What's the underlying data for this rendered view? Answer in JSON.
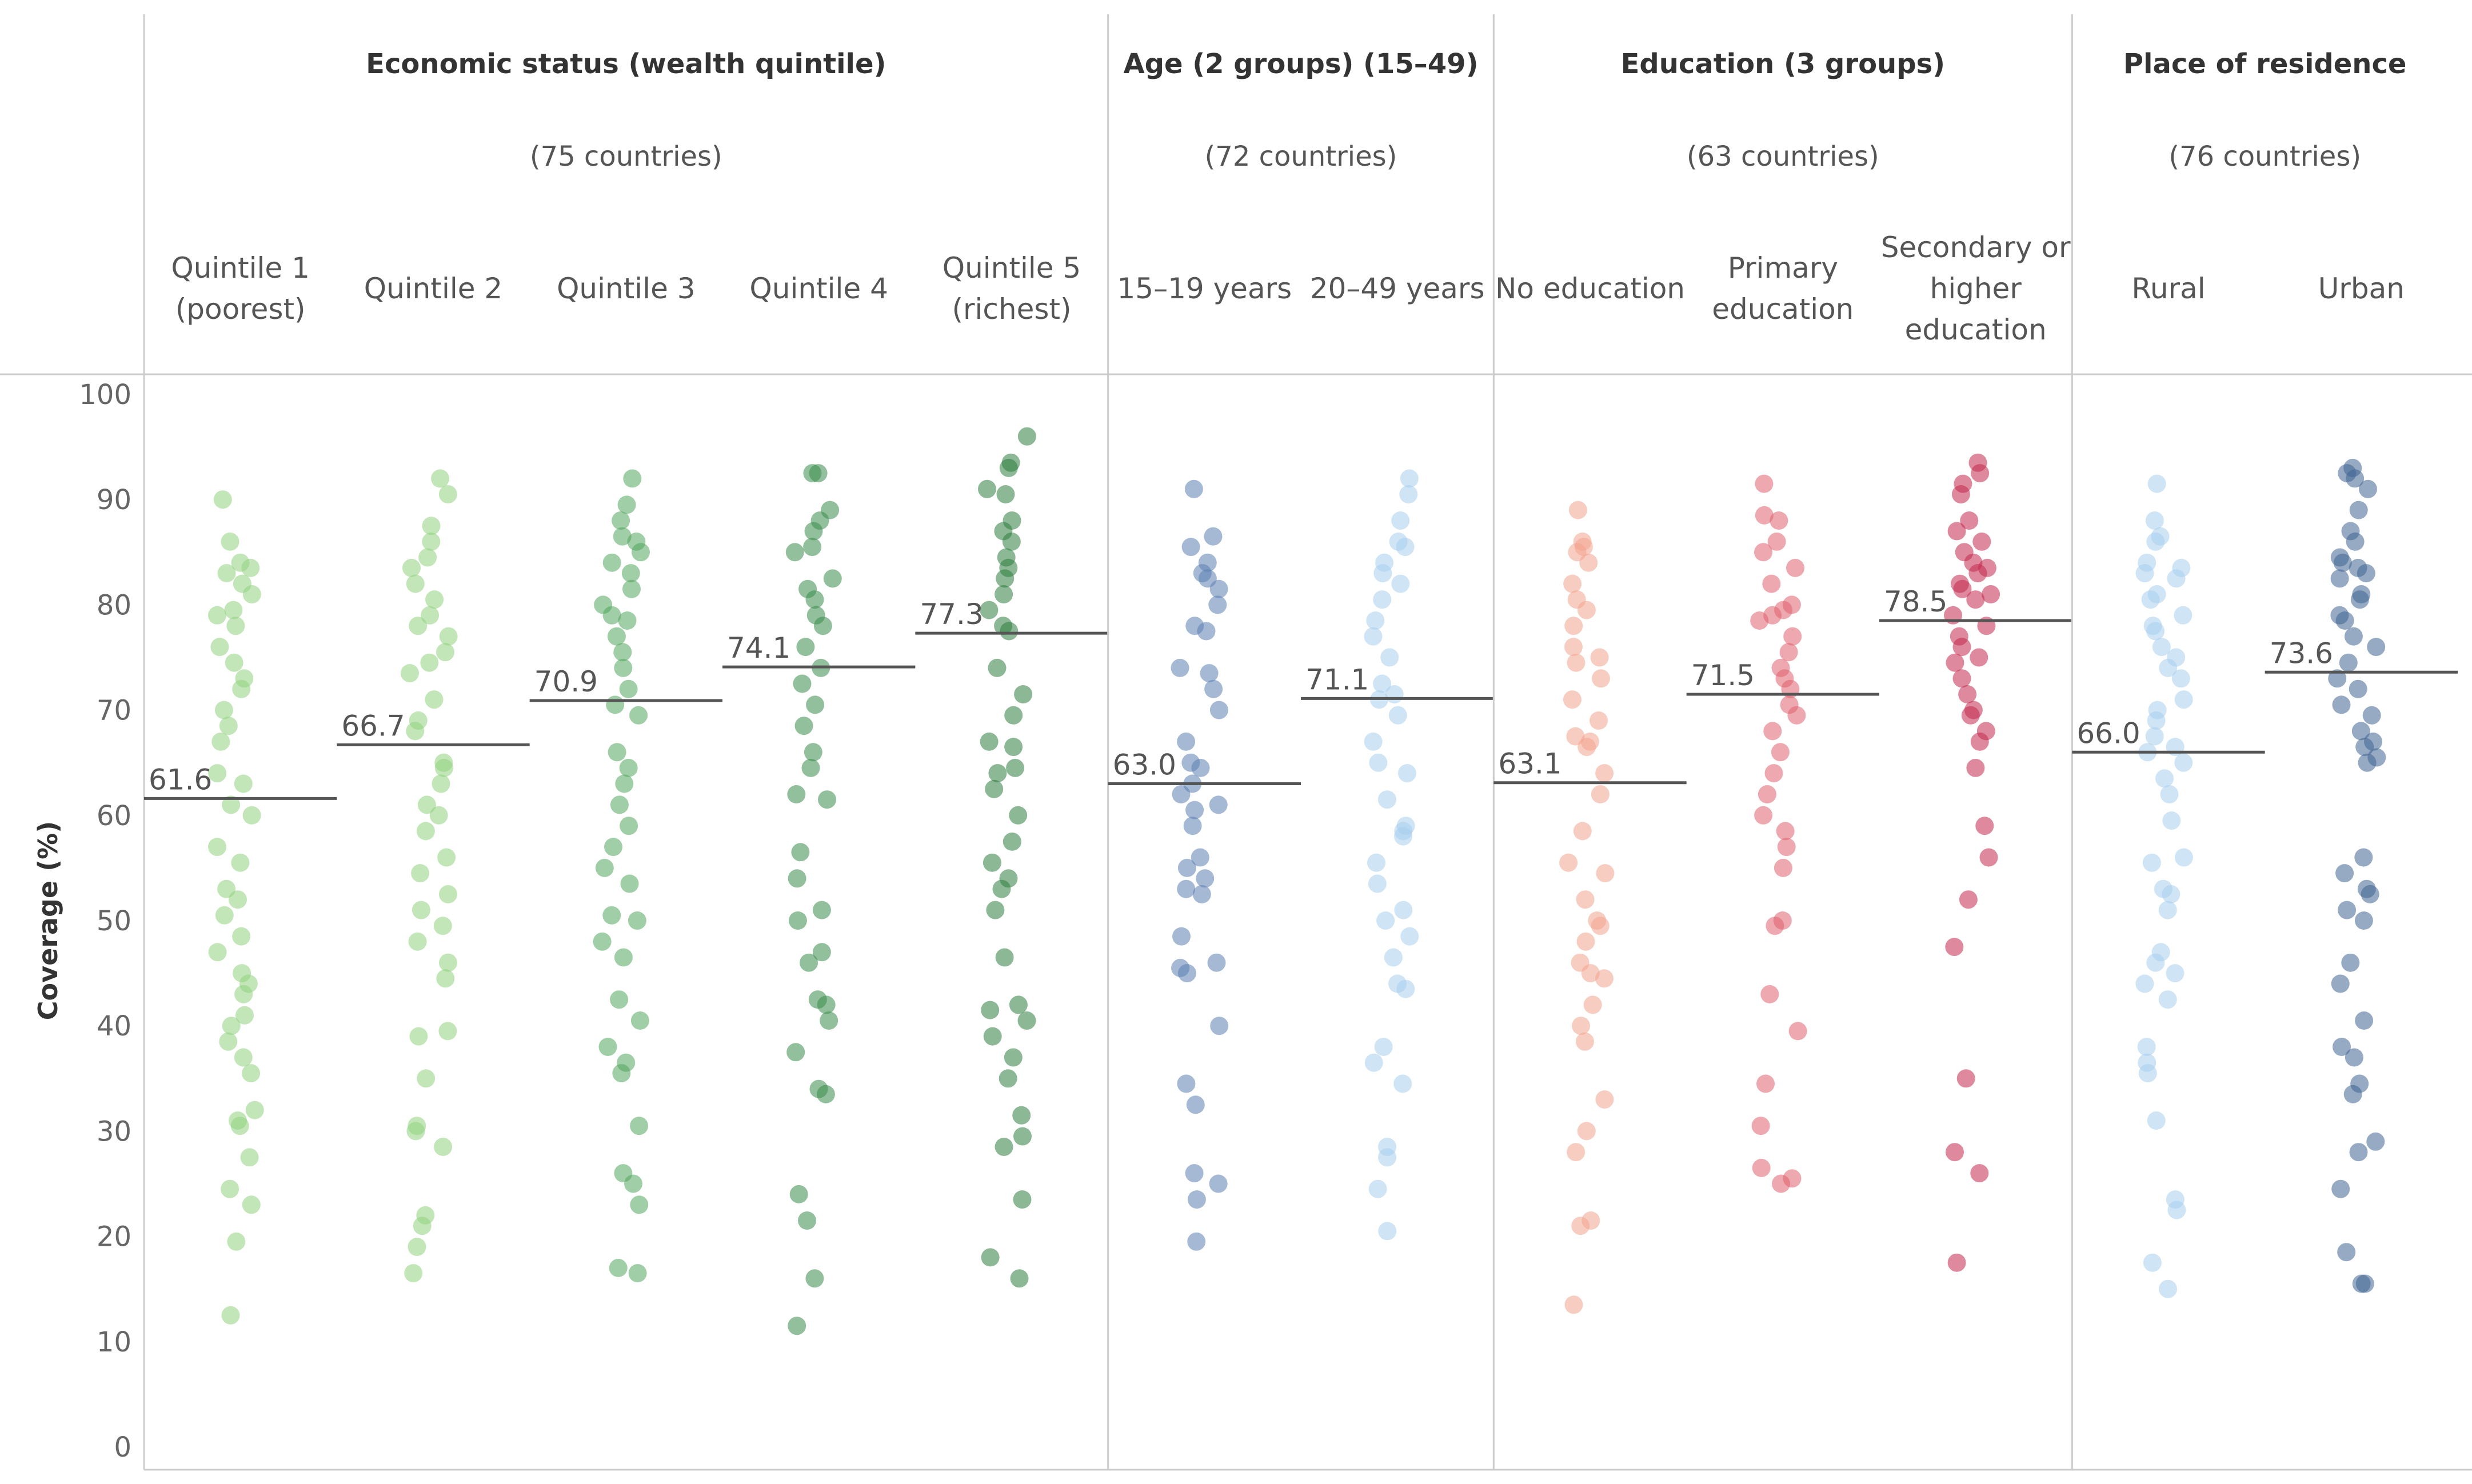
{
  "chart_data": {
    "type": "scatter",
    "ylabel": "Coverage (%)",
    "ylim": [
      0,
      100
    ],
    "yticks": [
      0,
      10,
      20,
      30,
      40,
      50,
      60,
      70,
      80,
      90,
      100
    ],
    "groups": [
      {
        "title": "Economic status (wealth quintile)",
        "subtitle": "(75 countries)",
        "categories": [
          {
            "label": [
              "Quintile 1",
              "(poorest)"
            ],
            "median": 61.6,
            "color": "#8fd17e",
            "values": [
              90,
              86,
              84,
              83.5,
              83,
              82,
              81,
              79.5,
              79,
              78,
              76,
              74.5,
              73,
              72,
              70,
              68.5,
              67,
              64,
              63,
              61,
              60,
              57,
              55.5,
              53,
              52,
              50.5,
              48.5,
              47,
              45,
              44,
              43,
              41,
              40,
              38.5,
              37,
              35.5,
              32,
              31,
              30.5,
              27.5,
              24.5,
              23,
              19.5,
              12.5
            ]
          },
          {
            "label": [
              "Quintile 2"
            ],
            "median": 66.7,
            "color": "#8fd17e",
            "values": [
              92,
              90.5,
              87.5,
              86,
              84.5,
              83.5,
              82,
              80.5,
              79,
              78,
              77,
              75.5,
              74.5,
              73.5,
              71,
              69,
              68,
              65,
              64.5,
              63,
              61,
              60,
              58.5,
              56,
              54.5,
              52.5,
              51,
              49.5,
              48,
              46,
              44.5,
              39.5,
              39,
              35,
              30.5,
              30,
              28.5,
              22,
              21,
              19,
              16.5
            ]
          },
          {
            "label": [
              "Quintile 3"
            ],
            "median": 70.9,
            "color": "#52a65c",
            "values": [
              92,
              89.5,
              88,
              86.5,
              86,
              85,
              84,
              83,
              81.5,
              80,
              79,
              78.5,
              77,
              75.5,
              74,
              72,
              70.5,
              69.5,
              66,
              64.5,
              63,
              61,
              59,
              57,
              55,
              53.5,
              50.5,
              50,
              48,
              46.5,
              42.5,
              40.5,
              38,
              36.5,
              35.5,
              30.5,
              26,
              25,
              23,
              17,
              16.5
            ]
          },
          {
            "label": [
              "Quintile 4"
            ],
            "median": 74.1,
            "color": "#3b8c4a",
            "values": [
              92.5,
              92.5,
              89,
              88,
              87,
              85.5,
              85,
              82.5,
              81.5,
              80.5,
              79,
              78,
              76,
              74,
              72.5,
              70.5,
              68.5,
              66,
              64.5,
              62,
              61.5,
              56.5,
              54,
              51,
              50,
              47,
              46,
              42.5,
              42,
              40.5,
              37.5,
              34,
              33.5,
              24,
              21.5,
              16,
              11.5
            ]
          },
          {
            "label": [
              "Quintile 5",
              "(richest)"
            ],
            "median": 77.3,
            "color": "#2e7d3e",
            "values": [
              96,
              93.5,
              93,
              91,
              90.5,
              88,
              87,
              86,
              84.5,
              83.5,
              82.5,
              81,
              79.5,
              78,
              77.5,
              74,
              71.5,
              69.5,
              67,
              66.5,
              64.5,
              64,
              62.5,
              60,
              57.5,
              55.5,
              54,
              53,
              51,
              46.5,
              42,
              41.5,
              40.5,
              39,
              37,
              35,
              31.5,
              29.5,
              28.5,
              23.5,
              18,
              16
            ]
          }
        ]
      },
      {
        "title": "Age (2 groups) (15–49)",
        "subtitle": "(72 countries)",
        "categories": [
          {
            "label": [
              "15–19 years"
            ],
            "median": 63.0,
            "color": "#5b7fb0",
            "values": [
              91,
              86.5,
              85.5,
              84,
              83,
              82.5,
              81.5,
              80,
              78,
              77.5,
              74,
              73.5,
              72,
              70,
              67,
              65,
              64.5,
              63,
              62,
              61,
              60.5,
              59,
              56,
              55,
              54,
              53,
              52.5,
              48.5,
              46,
              45.5,
              45,
              40,
              34.5,
              32.5,
              26,
              25,
              23.5,
              19.5
            ]
          },
          {
            "label": [
              "20–49 years"
            ],
            "median": 71.1,
            "color": "#a8cdec",
            "values": [
              92,
              90.5,
              88,
              86,
              85.5,
              84,
              83,
              82,
              80.5,
              78.5,
              77,
              75,
              72.5,
              71.5,
              71,
              69.5,
              67,
              65,
              64,
              61.5,
              59,
              58.5,
              58,
              55.5,
              53.5,
              51,
              50,
              48.5,
              46.5,
              44,
              43.5,
              38,
              36.5,
              34.5,
              28.5,
              27.5,
              24.5,
              20.5
            ]
          }
        ]
      },
      {
        "title": "Education (3 groups)",
        "subtitle": "(63 countries)",
        "categories": [
          {
            "label": [
              "No education"
            ],
            "median": 63.1,
            "color": "#f3a48e",
            "values": [
              89,
              86,
              85.5,
              85,
              84,
              82,
              80.5,
              79.5,
              78,
              76,
              75,
              74.5,
              73,
              71,
              69,
              67.5,
              67,
              66.5,
              64,
              62,
              58.5,
              55.5,
              54.5,
              52,
              50,
              49.5,
              48,
              46,
              45,
              44.5,
              42,
              40,
              38.5,
              33,
              30,
              28,
              21.5,
              21,
              13.5
            ]
          },
          {
            "label": [
              "Primary",
              "education"
            ],
            "median": 71.5,
            "color": "#e0606e",
            "values": [
              91.5,
              88.5,
              88,
              86,
              85,
              83.5,
              82,
              80,
              79.5,
              79,
              78.5,
              77,
              75.5,
              74,
              73,
              72,
              70.5,
              69.5,
              68,
              66,
              64,
              62,
              60,
              58.5,
              57,
              55,
              50,
              49.5,
              43,
              39.5,
              34.5,
              30.5,
              26.5,
              25.5,
              25
            ]
          },
          {
            "label": [
              "Secondary or",
              "higher",
              "education"
            ],
            "median": 78.5,
            "color": "#c2284d",
            "values": [
              93.5,
              92.5,
              91.5,
              90.5,
              88,
              87,
              86,
              85,
              84,
              83.5,
              83,
              82,
              81.5,
              81,
              80.5,
              79,
              78,
              77,
              76,
              75,
              74.5,
              73,
              71.5,
              70,
              69.5,
              68,
              67,
              64.5,
              59,
              56,
              52,
              47.5,
              35,
              28,
              26,
              17.5
            ]
          }
        ]
      },
      {
        "title": "Place of residence",
        "subtitle": "(76 countries)",
        "categories": [
          {
            "label": [
              "Rural"
            ],
            "median": 66.0,
            "color": "#a8cdec",
            "values": [
              91.5,
              88,
              86.5,
              86,
              84,
              83.5,
              83,
              82.5,
              81,
              80.5,
              79,
              78,
              77.5,
              76,
              75,
              74,
              73,
              71,
              70,
              69,
              67.5,
              66.5,
              66,
              65,
              63.5,
              62,
              59.5,
              56,
              55.5,
              53,
              52.5,
              51,
              47,
              46,
              45,
              44,
              42.5,
              38,
              36.5,
              35.5,
              31,
              23.5,
              22.5,
              17.5,
              15
            ]
          },
          {
            "label": [
              "Urban"
            ],
            "median": 73.6,
            "color": "#3f6592",
            "values": [
              93,
              92.5,
              92,
              91,
              89,
              87,
              86,
              84.5,
              84,
              83.5,
              83,
              82.5,
              81,
              80.5,
              79,
              78.5,
              77,
              76,
              74.5,
              73,
              72,
              70.5,
              69.5,
              68,
              67,
              66.5,
              65.5,
              65,
              56,
              54.5,
              53,
              52.5,
              51,
              50,
              46,
              44,
              40.5,
              38,
              37,
              34.5,
              33.5,
              29,
              28,
              24.5,
              18.5,
              15.5,
              15.5
            ]
          }
        ]
      }
    ]
  }
}
